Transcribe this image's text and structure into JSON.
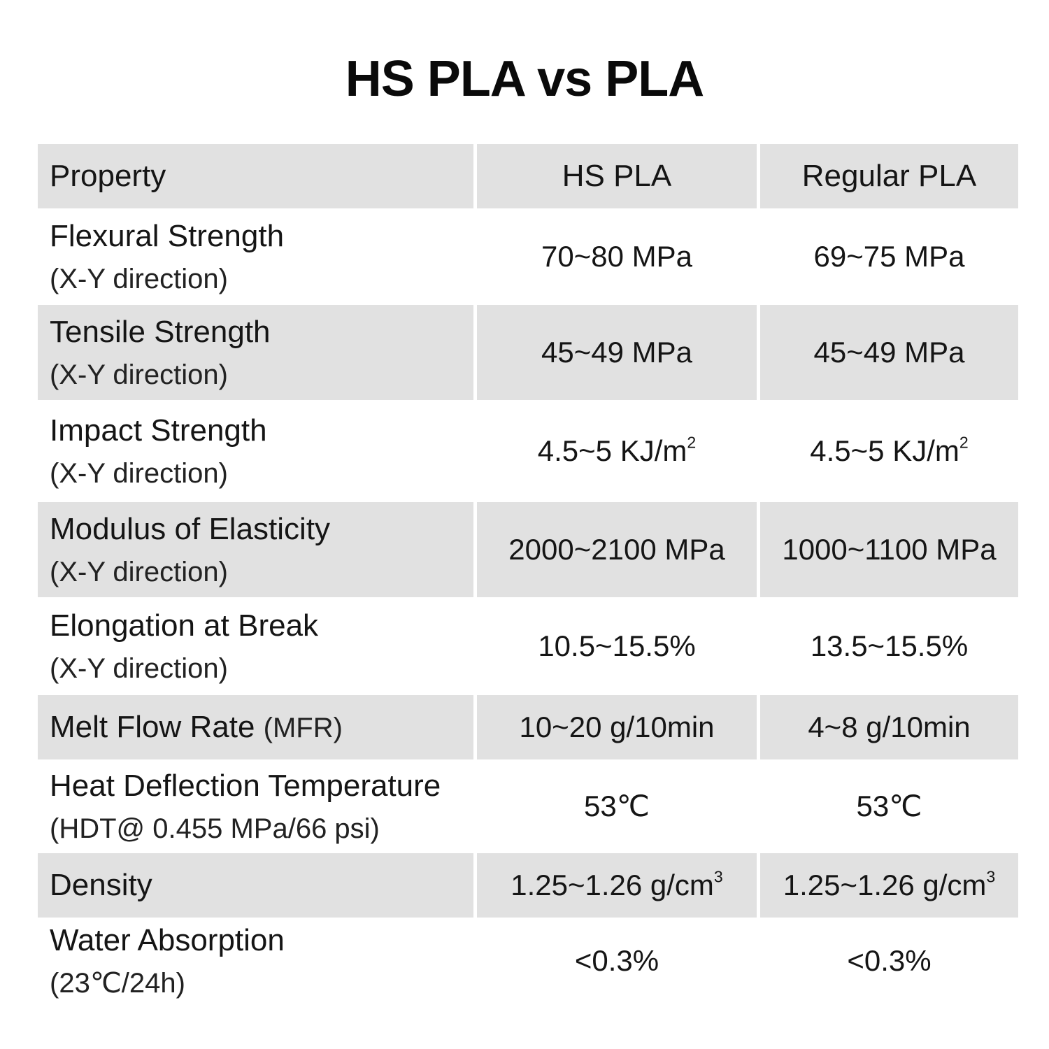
{
  "title": "HS PLA vs PLA",
  "header": {
    "property": "Property",
    "hs_pla": "HS PLA",
    "regular_pla": "Regular PLA"
  },
  "rows": [
    {
      "name": "Flexural Strength",
      "sub": "(X-Y direction)",
      "hs": "70~80 MPa",
      "reg": "69~75 MPa"
    },
    {
      "name": "Tensile Strength",
      "sub": "(X-Y direction)",
      "hs": "45~49 MPa",
      "reg": "45~49 MPa"
    },
    {
      "name": "Impact Strength",
      "sub": "(X-Y direction)",
      "hs": "4.5~5 KJ/m",
      "hs_sup": "2",
      "reg": "4.5~5 KJ/m",
      "reg_sup": "2"
    },
    {
      "name": "Modulus of Elasticity",
      "sub": "(X-Y direction)",
      "hs": "2000~2100 MPa",
      "reg": "1000~1100 MPa"
    },
    {
      "name": "Elongation at Break",
      "sub": "(X-Y direction)",
      "hs": "10.5~15.5%",
      "reg": "13.5~15.5%"
    },
    {
      "name": "Melt Flow Rate",
      "inline_sub": "(MFR)",
      "hs": "10~20 g/10min",
      "reg": "4~8 g/10min"
    },
    {
      "name": "Heat Deflection Temperature",
      "sub": "(HDT@ 0.455 MPa/66 psi)",
      "hs": "53℃",
      "reg": "53℃"
    },
    {
      "name": "Density",
      "hs": "1.25~1.26 g/cm",
      "hs_sup": "3",
      "reg": "1.25~1.26 g/cm",
      "reg_sup": "3"
    },
    {
      "name": "Water Absorption",
      "sub": "(23℃/24h)",
      "hs": "<0.3%",
      "reg": "<0.3%"
    }
  ],
  "colors": {
    "shaded_row": "#e1e1e1",
    "text": "#151515",
    "background": "#ffffff"
  }
}
